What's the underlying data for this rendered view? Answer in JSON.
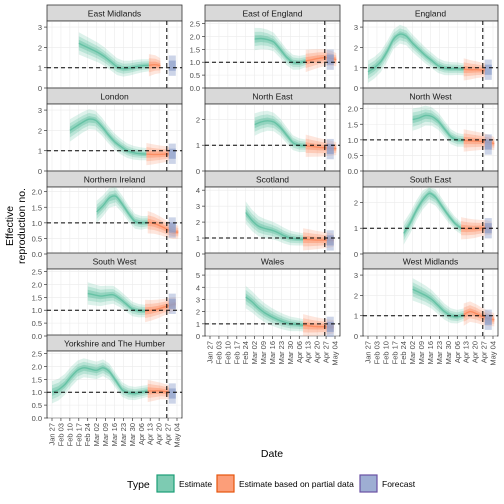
{
  "chart_data": {
    "type": "line",
    "layout": "facet-grid",
    "ylabel": "Effective\nreproduction no.",
    "xlabel": "Date",
    "x_ticks": [
      "Jan 27",
      "Feb 03",
      "Feb 10",
      "Feb 17",
      "Feb 24",
      "Mar 02",
      "Mar 09",
      "Mar 16",
      "Mar 23",
      "Mar 30",
      "Apr 06",
      "Apr 13",
      "Apr 20",
      "Apr 27",
      "May 04"
    ],
    "x_range": [
      "2020-01-27",
      "2020-05-04"
    ],
    "reference_line": {
      "y": 1,
      "style": "dashed"
    },
    "date_marker": {
      "x": "2020-04-26",
      "style": "dashed"
    },
    "legend": {
      "title": "Type",
      "position": "bottom",
      "entries": [
        {
          "label": "Estimate",
          "color": "#66c2a5"
        },
        {
          "label": "Estimate based on partial data",
          "color": "#fc8d62"
        },
        {
          "label": "Forecast",
          "color": "#8da0cb"
        }
      ]
    },
    "panels": [
      {
        "name": "East Midlands",
        "ylim": [
          0,
          3.3
        ],
        "yticks": [
          "0",
          "1",
          "2",
          "3"
        ],
        "start": "2020-02-17",
        "points": [
          [
            0,
            2.2
          ],
          [
            5,
            2.05
          ],
          [
            10,
            1.9
          ],
          [
            15,
            1.75
          ],
          [
            20,
            1.55
          ],
          [
            25,
            1.3
          ],
          [
            30,
            1.05
          ],
          [
            35,
            0.95
          ],
          [
            40,
            0.98
          ],
          [
            45,
            1.05
          ],
          [
            50,
            1.1
          ],
          [
            55,
            1.12
          ],
          [
            60,
            1.15
          ],
          [
            64,
            1.1
          ]
        ],
        "forecast": 1.1
      },
      {
        "name": "East of England",
        "ylim": [
          0,
          2.6
        ],
        "yticks": [
          "0.0",
          "0.5",
          "1.0",
          "1.5",
          "2.0",
          "2.5"
        ],
        "start": "2020-03-02",
        "points": [
          [
            0,
            1.9
          ],
          [
            5,
            1.92
          ],
          [
            10,
            1.88
          ],
          [
            15,
            1.78
          ],
          [
            20,
            1.5
          ],
          [
            25,
            1.2
          ],
          [
            30,
            1.0
          ],
          [
            35,
            0.98
          ],
          [
            40,
            1.05
          ],
          [
            45,
            1.1
          ],
          [
            50,
            1.15
          ],
          [
            55,
            1.18
          ],
          [
            60,
            1.15
          ],
          [
            64,
            1.1
          ]
        ],
        "forecast": 1.1
      },
      {
        "name": "England",
        "ylim": [
          0,
          3.3
        ],
        "yticks": [
          "0",
          "1",
          "2",
          "3"
        ],
        "start": "2020-01-27",
        "points": [
          [
            0,
            0.8
          ],
          [
            5,
            1.0
          ],
          [
            10,
            1.3
          ],
          [
            15,
            1.8
          ],
          [
            20,
            2.4
          ],
          [
            25,
            2.65
          ],
          [
            30,
            2.55
          ],
          [
            35,
            2.2
          ],
          [
            40,
            1.9
          ],
          [
            45,
            1.6
          ],
          [
            50,
            1.35
          ],
          [
            55,
            1.1
          ],
          [
            60,
            0.98
          ],
          [
            65,
            0.95
          ],
          [
            70,
            0.95
          ],
          [
            75,
            0.92
          ],
          [
            80,
            0.9
          ],
          [
            85,
            0.9
          ],
          [
            92,
            0.88
          ]
        ],
        "forecast": 0.9
      },
      {
        "name": "London",
        "ylim": [
          0,
          3.3
        ],
        "yticks": [
          "0",
          "1",
          "2",
          "3"
        ],
        "start": "2020-02-10",
        "points": [
          [
            0,
            2.0
          ],
          [
            5,
            2.2
          ],
          [
            10,
            2.4
          ],
          [
            15,
            2.55
          ],
          [
            20,
            2.5
          ],
          [
            25,
            2.2
          ],
          [
            30,
            1.8
          ],
          [
            35,
            1.45
          ],
          [
            40,
            1.2
          ],
          [
            45,
            1.0
          ],
          [
            50,
            0.9
          ],
          [
            55,
            0.85
          ],
          [
            60,
            0.83
          ],
          [
            65,
            0.82
          ],
          [
            70,
            0.82
          ],
          [
            75,
            0.83
          ],
          [
            78,
            0.85
          ]
        ],
        "forecast": 0.85
      },
      {
        "name": "North East",
        "ylim": [
          0,
          2.6
        ],
        "yticks": [
          "0",
          "1",
          "2"
        ],
        "start": "2020-03-02",
        "points": [
          [
            0,
            1.8
          ],
          [
            5,
            1.9
          ],
          [
            10,
            1.95
          ],
          [
            15,
            1.9
          ],
          [
            20,
            1.7
          ],
          [
            25,
            1.4
          ],
          [
            30,
            1.1
          ],
          [
            35,
            1.0
          ],
          [
            40,
            0.98
          ],
          [
            45,
            0.95
          ],
          [
            50,
            0.92
          ],
          [
            55,
            0.9
          ],
          [
            60,
            0.88
          ],
          [
            64,
            0.87
          ]
        ],
        "forecast": 0.85
      },
      {
        "name": "North West",
        "ylim": [
          0,
          2.15
        ],
        "yticks": [
          "0.0",
          "0.5",
          "1.0",
          "1.5",
          "2.0"
        ],
        "start": "2020-03-02",
        "points": [
          [
            0,
            1.65
          ],
          [
            5,
            1.7
          ],
          [
            10,
            1.78
          ],
          [
            15,
            1.75
          ],
          [
            20,
            1.6
          ],
          [
            25,
            1.35
          ],
          [
            30,
            1.1
          ],
          [
            35,
            1.0
          ],
          [
            40,
            0.98
          ],
          [
            45,
            0.97
          ],
          [
            50,
            0.96
          ],
          [
            55,
            0.95
          ],
          [
            60,
            0.92
          ],
          [
            64,
            0.88
          ]
        ],
        "forecast": 0.85
      },
      {
        "name": "Northern Ireland",
        "ylim": [
          0,
          2.15
        ],
        "yticks": [
          "0.0",
          "0.5",
          "1.0",
          "1.5",
          "2.0"
        ],
        "start": "2020-03-02",
        "points": [
          [
            0,
            1.35
          ],
          [
            5,
            1.55
          ],
          [
            10,
            1.8
          ],
          [
            15,
            1.85
          ],
          [
            20,
            1.6
          ],
          [
            25,
            1.3
          ],
          [
            30,
            1.05
          ],
          [
            35,
            1.0
          ],
          [
            40,
            1.02
          ],
          [
            45,
            0.98
          ],
          [
            50,
            0.9
          ],
          [
            55,
            0.8
          ],
          [
            60,
            0.72
          ],
          [
            64,
            0.7
          ]
        ],
        "forecast": 0.85
      },
      {
        "name": "Scotland",
        "ylim": [
          0,
          4.2
        ],
        "yticks": [
          "0",
          "1",
          "2",
          "3",
          "4"
        ],
        "start": "2020-02-24",
        "points": [
          [
            0,
            2.6
          ],
          [
            5,
            2.1
          ],
          [
            10,
            1.75
          ],
          [
            15,
            1.6
          ],
          [
            20,
            1.5
          ],
          [
            25,
            1.35
          ],
          [
            30,
            1.15
          ],
          [
            35,
            1.0
          ],
          [
            40,
            0.95
          ],
          [
            45,
            0.92
          ],
          [
            50,
            0.9
          ],
          [
            55,
            0.88
          ],
          [
            60,
            0.87
          ],
          [
            65,
            0.86
          ],
          [
            69,
            0.86
          ]
        ],
        "forecast": 0.85
      },
      {
        "name": "South East",
        "ylim": [
          0,
          2.6
        ],
        "yticks": [
          "0",
          "1",
          "2"
        ],
        "start": "2020-02-24",
        "points": [
          [
            0,
            0.8
          ],
          [
            5,
            1.2
          ],
          [
            10,
            1.7
          ],
          [
            15,
            2.1
          ],
          [
            20,
            2.35
          ],
          [
            25,
            2.2
          ],
          [
            30,
            1.85
          ],
          [
            35,
            1.5
          ],
          [
            40,
            1.2
          ],
          [
            45,
            1.0
          ],
          [
            50,
            0.98
          ],
          [
            55,
            0.98
          ],
          [
            60,
            1.0
          ],
          [
            65,
            1.02
          ],
          [
            69,
            1.0
          ]
        ],
        "forecast": 1.0
      },
      {
        "name": "South West",
        "ylim": [
          0,
          2.6
        ],
        "yticks": [
          "0.0",
          "0.5",
          "1.0",
          "1.5",
          "2.0",
          "2.5"
        ],
        "start": "2020-02-24",
        "points": [
          [
            0,
            1.65
          ],
          [
            5,
            1.6
          ],
          [
            10,
            1.55
          ],
          [
            15,
            1.58
          ],
          [
            20,
            1.6
          ],
          [
            25,
            1.45
          ],
          [
            30,
            1.25
          ],
          [
            35,
            1.05
          ],
          [
            40,
            0.98
          ],
          [
            45,
            0.97
          ],
          [
            50,
            1.0
          ],
          [
            55,
            1.05
          ],
          [
            60,
            1.12
          ],
          [
            65,
            1.2
          ],
          [
            69,
            1.25
          ]
        ],
        "forecast": 1.25
      },
      {
        "name": "Wales",
        "ylim": [
          0,
          5.5
        ],
        "yticks": [
          "0",
          "1",
          "2",
          "3",
          "4",
          "5"
        ],
        "start": "2020-02-24",
        "points": [
          [
            0,
            3.2
          ],
          [
            5,
            2.8
          ],
          [
            10,
            2.3
          ],
          [
            15,
            1.9
          ],
          [
            20,
            1.6
          ],
          [
            25,
            1.35
          ],
          [
            30,
            1.15
          ],
          [
            35,
            1.0
          ],
          [
            40,
            0.95
          ],
          [
            45,
            0.88
          ],
          [
            50,
            0.82
          ],
          [
            55,
            0.78
          ],
          [
            60,
            0.76
          ],
          [
            65,
            0.75
          ],
          [
            69,
            0.75
          ]
        ],
        "forecast": 0.75
      },
      {
        "name": "West Midlands",
        "ylim": [
          0,
          3.3
        ],
        "yticks": [
          "0",
          "1",
          "2",
          "3"
        ],
        "start": "2020-03-02",
        "points": [
          [
            0,
            2.3
          ],
          [
            5,
            2.15
          ],
          [
            10,
            2.0
          ],
          [
            15,
            1.8
          ],
          [
            20,
            1.5
          ],
          [
            25,
            1.2
          ],
          [
            30,
            1.0
          ],
          [
            35,
            0.95
          ],
          [
            40,
            1.05
          ],
          [
            45,
            1.2
          ],
          [
            50,
            1.1
          ],
          [
            55,
            0.95
          ],
          [
            60,
            0.85
          ],
          [
            64,
            0.8
          ]
        ],
        "forecast": 0.8
      },
      {
        "name": "Yorkshire and The Humber",
        "ylim": [
          0,
          2.6
        ],
        "yticks": [
          "0.0",
          "0.5",
          "1.0",
          "1.5",
          "2.0",
          "2.5"
        ],
        "start": "2020-01-27",
        "points": [
          [
            0,
            1.0
          ],
          [
            5,
            1.1
          ],
          [
            10,
            1.3
          ],
          [
            15,
            1.6
          ],
          [
            20,
            1.85
          ],
          [
            25,
            1.95
          ],
          [
            30,
            1.9
          ],
          [
            35,
            1.85
          ],
          [
            40,
            1.95
          ],
          [
            45,
            1.8
          ],
          [
            50,
            1.45
          ],
          [
            55,
            1.1
          ],
          [
            60,
            0.98
          ],
          [
            65,
            0.95
          ],
          [
            70,
            1.0
          ],
          [
            75,
            1.05
          ],
          [
            80,
            1.05
          ],
          [
            85,
            1.05
          ],
          [
            92,
            1.0
          ]
        ],
        "forecast": 0.95
      }
    ]
  }
}
